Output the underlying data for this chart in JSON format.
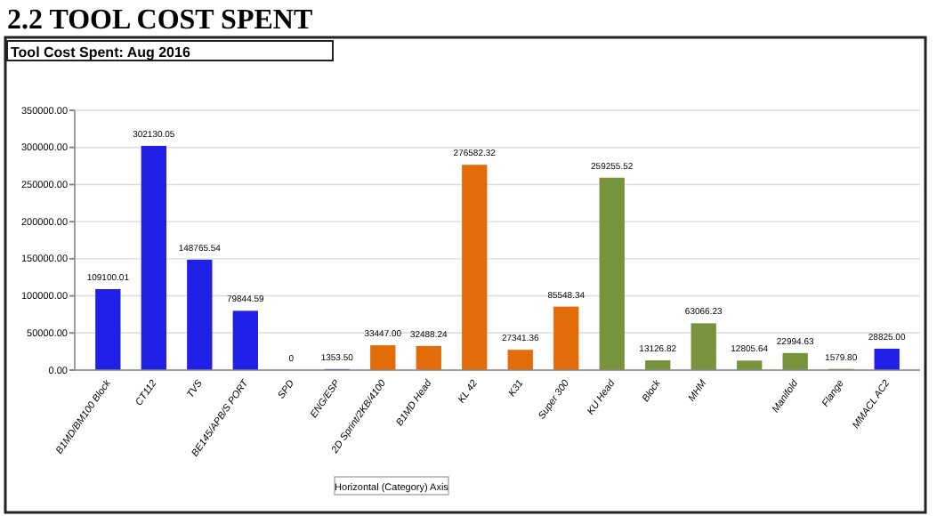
{
  "chart_data": {
    "type": "bar",
    "title": "2.2 TOOL COST SPENT",
    "subtitle": "Tool Cost Spent: Aug 2016",
    "categories": [
      "B1MD/BM100 Block",
      "CT112",
      "TVS",
      "BE145/APB/S PORT",
      "SPD",
      "ENG/ESP",
      "2D Sprint/2KB/4100",
      "B1MD Head",
      "KL 42",
      "K31",
      "Super 300",
      "KU Head",
      "Block",
      "MHM",
      null,
      "Manifold",
      "Flange",
      "MMACL AC2"
    ],
    "values": [
      109100.01,
      302130.05,
      148765.54,
      79844.59,
      0,
      1353.5,
      33447.0,
      32488.24,
      276582.32,
      27341.36,
      85548.34,
      259255.52,
      13126.82,
      63066.23,
      12805.64,
      22994.63,
      1579.8,
      28825.0
    ],
    "value_labels": [
      "109100.01",
      "302130.05",
      "148765.54",
      "79844.59",
      "0",
      "1353.50",
      "33447.00",
      "32488.24",
      "276582.32",
      "27341.36",
      "85548.34",
      "259255.52",
      "13126.82",
      "63066.23",
      "12805.64",
      "22994.63",
      "1579.80",
      "28825.00"
    ],
    "colors": [
      "#1f1fe6",
      "#1f1fe6",
      "#1f1fe6",
      "#1f1fe6",
      "#1f1fe6",
      "#1f1fe6",
      "#e36c0a",
      "#e36c0a",
      "#e36c0a",
      "#e36c0a",
      "#e36c0a",
      "#77933c",
      "#77933c",
      "#77933c",
      "#77933c",
      "#77933c",
      "#77933c",
      "#1f1fe6"
    ],
    "ylim": [
      0,
      350000
    ],
    "yticks": [
      {
        "value": 0,
        "label": "0.00"
      },
      {
        "value": 50000,
        "label": "50000.00"
      },
      {
        "value": 100000,
        "label": "100000.00"
      },
      {
        "value": 150000,
        "label": "150000.00"
      },
      {
        "value": 200000,
        "label": "200000.00"
      },
      {
        "value": 250000,
        "label": "250000.00"
      },
      {
        "value": 300000,
        "label": "300000.00"
      },
      {
        "value": 350000,
        "label": "350000.00"
      }
    ],
    "grid": "y",
    "annotations": [
      "Horizontal (Category) Axis"
    ]
  }
}
